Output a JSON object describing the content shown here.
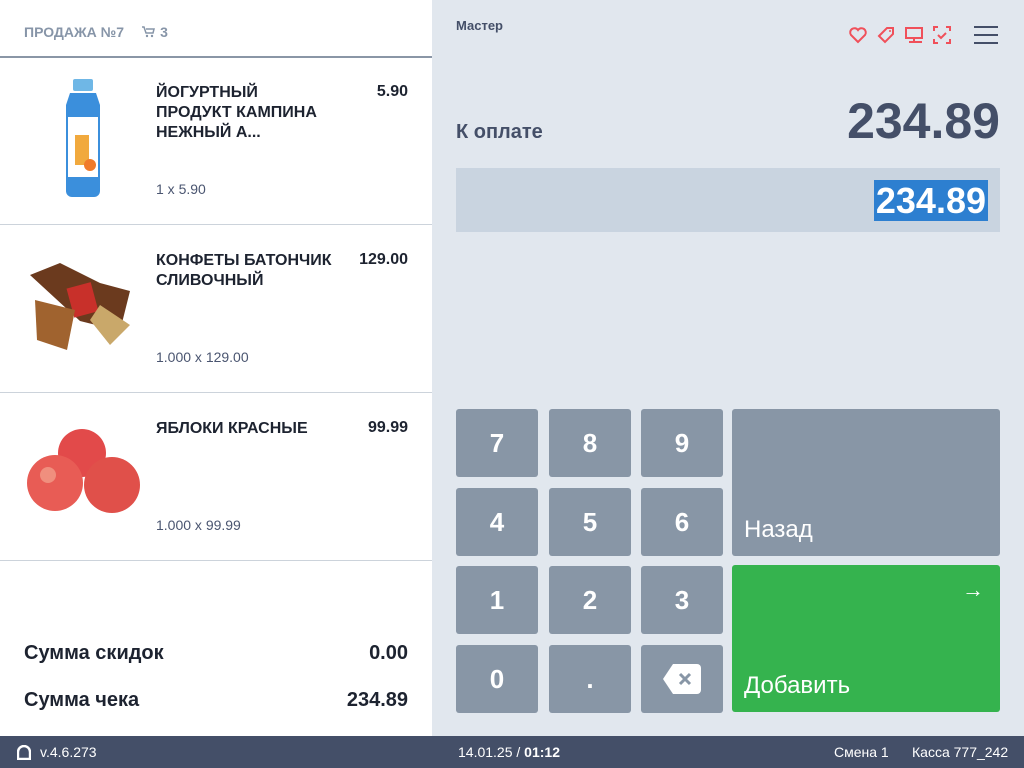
{
  "cart": {
    "title": "ПРОДАЖА №7",
    "count": "3",
    "icon": "cart-icon",
    "items": [
      {
        "name": "ЙОГУРТНЫЙ ПРОДУКТ КАМПИНА НЕЖНЫЙ А...",
        "price": "5.90",
        "qty": "1 x 5.90",
        "image": "yogurt-bottle"
      },
      {
        "name": "КОНФЕТЫ БАТОНЧИК СЛИВОЧНЫЙ",
        "price": "129.00",
        "qty": "1.000 x 129.00",
        "image": "candy"
      },
      {
        "name": "ЯБЛОКИ КРАСНЫЕ",
        "price": "99.99",
        "qty": "1.000 x 99.99",
        "image": "red-apples"
      }
    ],
    "discount_label": "Сумма скидок",
    "discount_value": "0.00",
    "total_label": "Сумма чека",
    "total_value": "234.89"
  },
  "payment": {
    "mode": "Мастер",
    "due_label": "К оплате",
    "due_amount": "234.89",
    "input_value": "234.89",
    "icons": [
      "heart-icon",
      "tag-icon",
      "monitor-icon",
      "scan-check-icon",
      "menu-icon"
    ],
    "accent": "#f0505a"
  },
  "keypad": {
    "keys": [
      "7",
      "8",
      "9",
      "4",
      "5",
      "6",
      "1",
      "2",
      "3",
      "0",
      "."
    ],
    "back_label": "Назад",
    "add_label": "Добавить",
    "add_color": "#35b34e"
  },
  "footer": {
    "version": "v.4.6.273",
    "date": "14.01.25",
    "time": "01:12",
    "shift": "Смена 1",
    "register": "Касса 777_242"
  }
}
